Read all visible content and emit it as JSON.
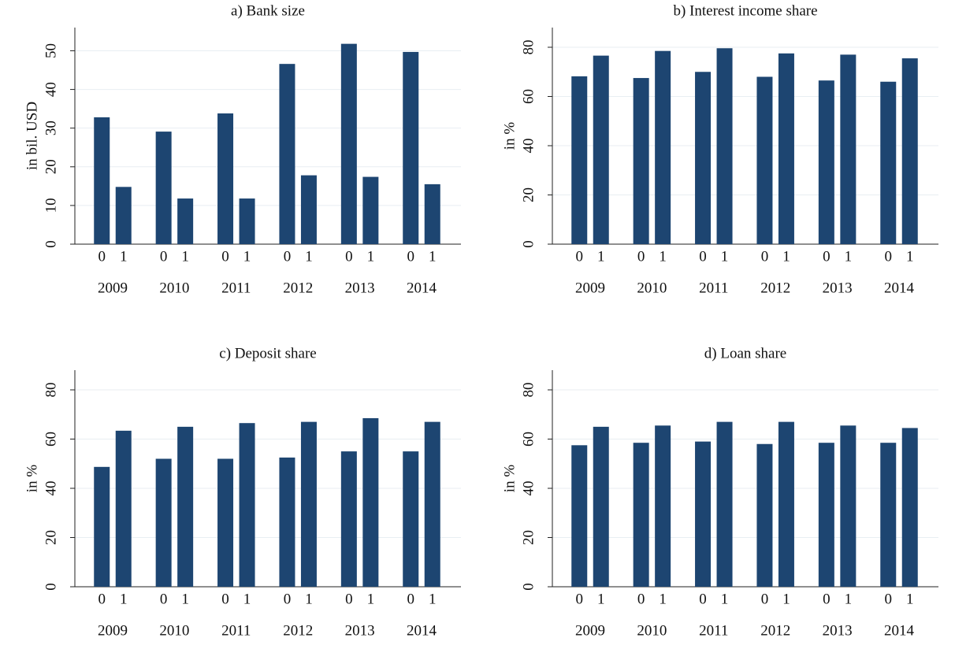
{
  "chart_data": [
    {
      "type": "bar",
      "title": "a) Bank size",
      "y_label": "in bil. USD",
      "categories": [
        "2009",
        "2010",
        "2011",
        "2012",
        "2013",
        "2014"
      ],
      "series": [
        {
          "name": "0",
          "color": "#1d4571",
          "values": [
            32.8,
            29.1,
            33.8,
            46.6,
            51.8,
            49.7
          ]
        },
        {
          "name": "1",
          "color": "#1d4571",
          "values": [
            14.8,
            11.8,
            11.8,
            17.8,
            17.4,
            15.5
          ]
        }
      ],
      "ylim": [
        0,
        56
      ],
      "yticks": [
        0,
        10,
        20,
        30,
        40,
        50
      ],
      "grid": true
    },
    {
      "type": "bar",
      "title": "b) Interest income share",
      "y_label": "in %",
      "categories": [
        "2009",
        "2010",
        "2011",
        "2012",
        "2013",
        "2014"
      ],
      "series": [
        {
          "name": "0",
          "color": "#1d4571",
          "values": [
            68.2,
            67.5,
            70,
            68,
            66.5,
            66
          ]
        },
        {
          "name": "1",
          "color": "#1d4571",
          "values": [
            76.6,
            78.5,
            79.6,
            77.5,
            77,
            75.5
          ]
        }
      ],
      "ylim": [
        0,
        88
      ],
      "yticks": [
        0,
        20,
        40,
        60,
        80
      ],
      "grid": true
    },
    {
      "type": "bar",
      "title": "c) Deposit share",
      "y_label": "in %",
      "categories": [
        "2009",
        "2010",
        "2011",
        "2012",
        "2013",
        "2014"
      ],
      "series": [
        {
          "name": "0",
          "color": "#1d4571",
          "values": [
            48.7,
            52,
            52,
            52.5,
            55,
            55
          ]
        },
        {
          "name": "1",
          "color": "#1d4571",
          "values": [
            63.4,
            65,
            66.5,
            67,
            68.5,
            67
          ]
        }
      ],
      "ylim": [
        0,
        88
      ],
      "yticks": [
        0,
        20,
        40,
        60,
        80
      ],
      "grid": true
    },
    {
      "type": "bar",
      "title": "d) Loan share",
      "y_label": "in %",
      "categories": [
        "2009",
        "2010",
        "2011",
        "2012",
        "2013",
        "2014"
      ],
      "series": [
        {
          "name": "0",
          "color": "#1d4571",
          "values": [
            57.5,
            58.5,
            59,
            58,
            58.5,
            58.5
          ]
        },
        {
          "name": "1",
          "color": "#1d4571",
          "values": [
            65,
            65.5,
            67,
            67,
            65.5,
            64.5
          ]
        }
      ],
      "ylim": [
        0,
        88
      ],
      "yticks": [
        0,
        20,
        40,
        60,
        80
      ],
      "grid": true
    }
  ]
}
